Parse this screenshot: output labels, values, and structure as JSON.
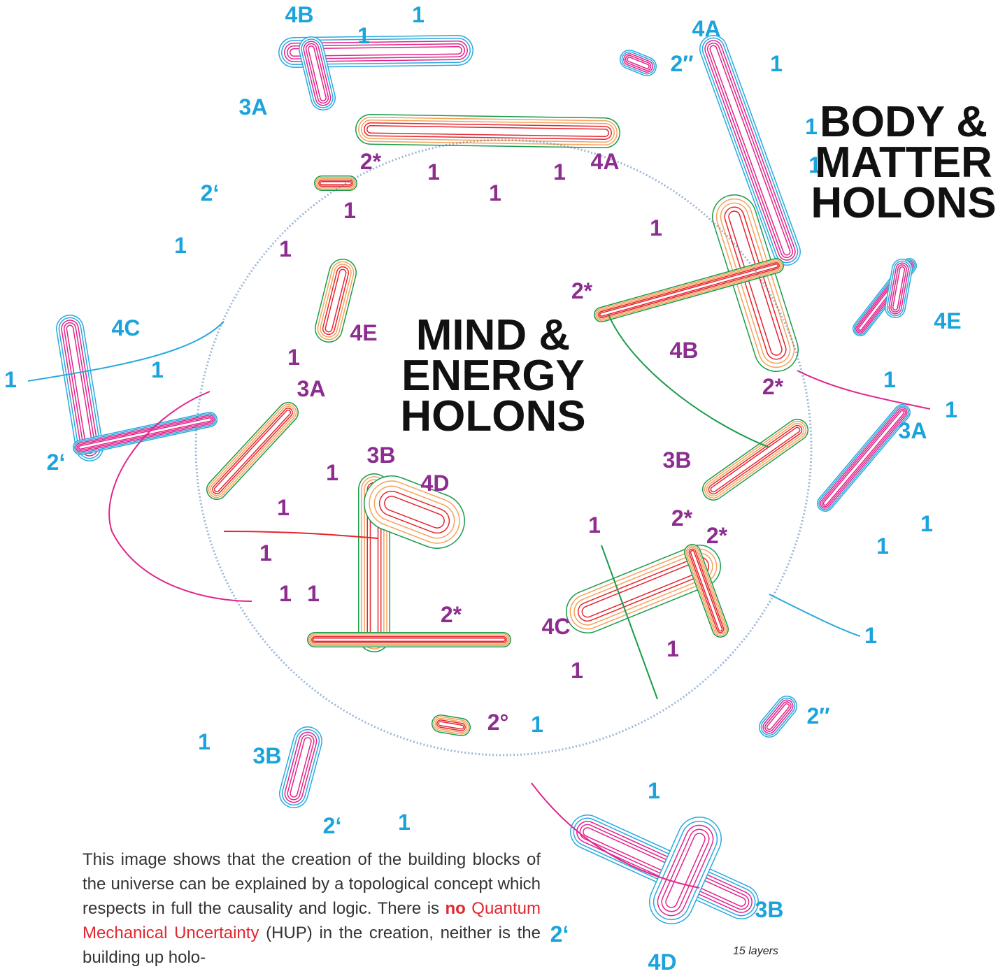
{
  "titles": {
    "mind": [
      "MIND &",
      "ENERGY",
      "HOLONS"
    ],
    "body": [
      "BODY &",
      "MATTER",
      "HOLONS"
    ]
  },
  "cyan": {
    "color": "#1ba3dc",
    "labels": [
      "4B",
      "1",
      "1",
      "3A",
      "4A",
      "1",
      "2″",
      "1",
      "1",
      "2‘",
      "1",
      "4C",
      "1",
      "1",
      "2‘",
      "4E",
      "1",
      "1",
      "3A",
      "1",
      "1",
      "1",
      "2″",
      "1",
      "3B",
      "2‘",
      "1",
      "1",
      "1",
      "3B",
      "2‘",
      "4D"
    ]
  },
  "purple": {
    "color": "#8c2d8f",
    "labels": [
      "2*",
      "4A",
      "1",
      "1",
      "1",
      "1",
      "1",
      "4E",
      "1",
      "3A",
      "1",
      "1",
      "3B",
      "4D",
      "1",
      "1",
      "1",
      "2*",
      "2°",
      "1",
      "1",
      "2*",
      "4B",
      "2*",
      "3B",
      "1",
      "2*",
      "2*",
      "4C",
      "1"
    ]
  },
  "layers_note": "15 layers",
  "caption": {
    "intro": "This image shows that the creation of the building blocks of the universe can be explained by a topological concept which respects in full the causality and logic. There is",
    "no": "no",
    "qmu": "Quantum Mechanical Uncertainty",
    "rest": "(HUP) in the creation, neither is the building up holo-"
  }
}
